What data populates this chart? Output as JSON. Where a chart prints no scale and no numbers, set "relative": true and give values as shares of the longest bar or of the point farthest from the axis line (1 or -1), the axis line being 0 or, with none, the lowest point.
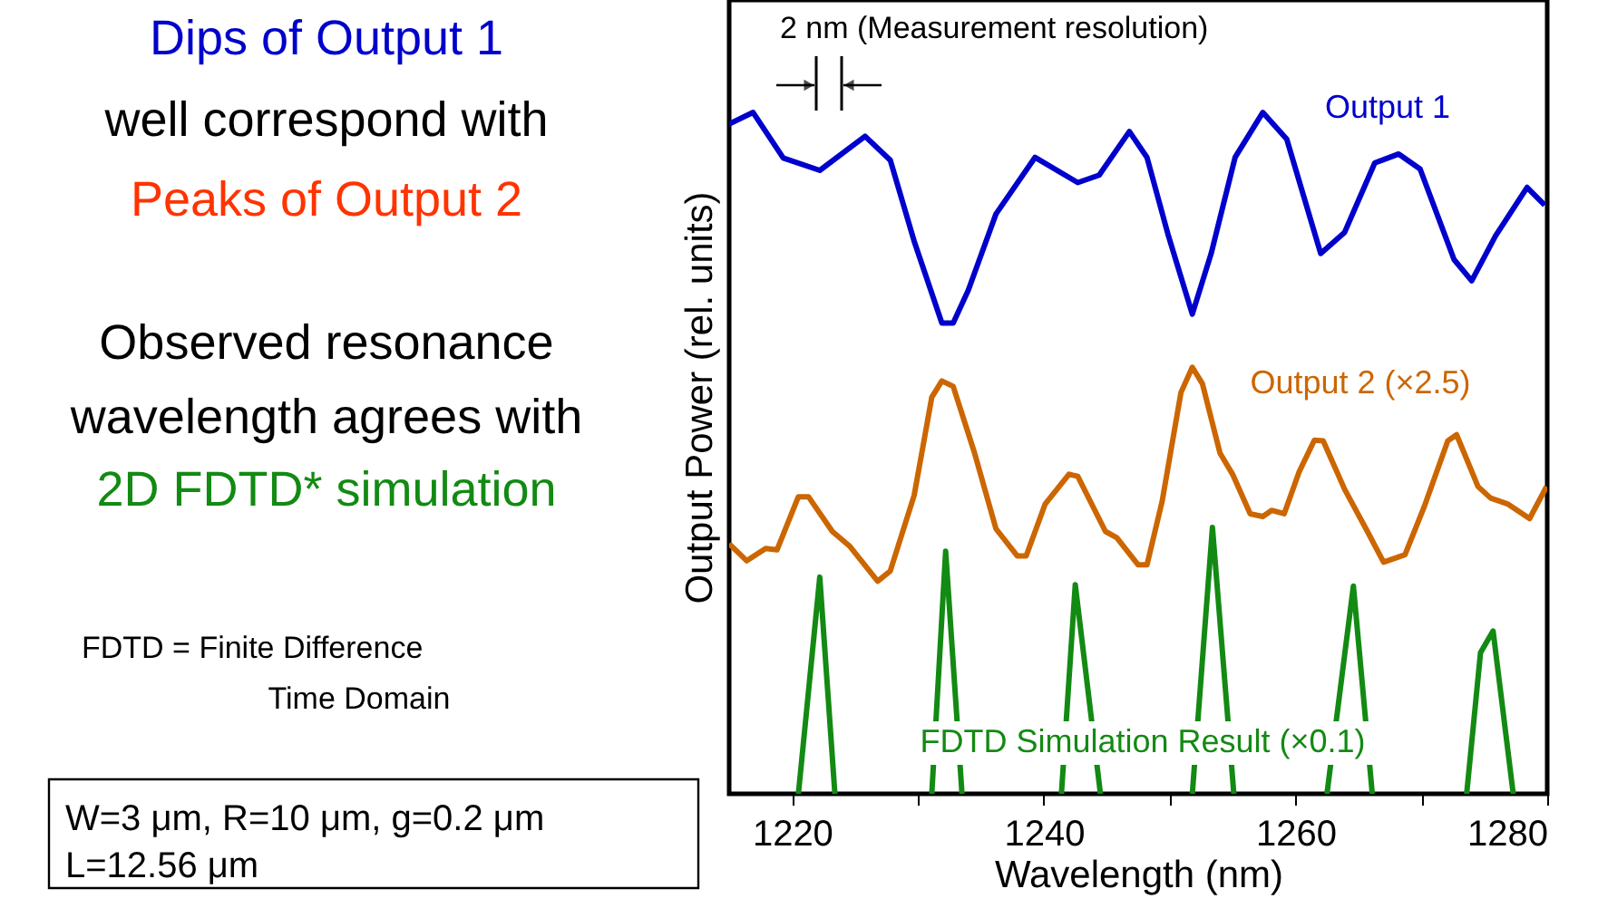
{
  "chart_data": {
    "type": "line",
    "relative": true,
    "xlabel": "Wavelength (nm)",
    "ylabel": "Output Power (rel. units)",
    "xlim": [
      1215,
      1280
    ],
    "xticks": [
      1220,
      {
        "value": 1230,
        "label": null
      },
      1240,
      {
        "value": 1250,
        "label": null
      },
      1260,
      {
        "value": 1270,
        "label": null
      },
      1280
    ],
    "series": [
      {
        "name": "Output 1",
        "color": "#0000cc",
        "x": [
          1215.0,
          1216.9,
          1219.3,
          1222.2,
          1225.8,
          1227.8,
          1229.7,
          1231.9,
          1232.8,
          1234.0,
          1236.2,
          1239.3,
          1242.7,
          1244.4,
          1246.8,
          1248.2,
          1249.9,
          1251.8,
          1253.3,
          1255.2,
          1257.4,
          1259.3,
          1262.0,
          1263.9,
          1266.3,
          1268.2,
          1269.9,
          1272.6,
          1274.0,
          1275.9,
          1278.4,
          1279.8
        ],
        "values": [
          0.983,
          1.0,
          0.933,
          0.915,
          0.965,
          0.93,
          0.811,
          0.691,
          0.691,
          0.739,
          0.851,
          0.934,
          0.897,
          0.908,
          0.972,
          0.934,
          0.819,
          0.704,
          0.793,
          0.934,
          1.0,
          0.961,
          0.793,
          0.824,
          0.926,
          0.939,
          0.917,
          0.784,
          0.753,
          0.819,
          0.89,
          0.864
        ]
      },
      {
        "name": "Output 2 (×2.5)",
        "color": "#cc6600",
        "x": [
          1215.0,
          1216.4,
          1217.9,
          1218.8,
          1220.5,
          1221.3,
          1223.2,
          1224.6,
          1226.8,
          1227.8,
          1229.7,
          1231.1,
          1231.9,
          1232.8,
          1234.5,
          1236.2,
          1237.9,
          1238.6,
          1240.1,
          1242.0,
          1242.7,
          1244.9,
          1245.8,
          1247.5,
          1248.2,
          1249.4,
          1250.9,
          1251.8,
          1252.6,
          1254.0,
          1255.0,
          1256.4,
          1257.4,
          1258.1,
          1259.1,
          1260.3,
          1261.5,
          1262.2,
          1263.9,
          1265.6,
          1267.0,
          1268.7,
          1270.2,
          1272.1,
          1272.8,
          1274.5,
          1275.5,
          1276.9,
          1278.6,
          1279.95
        ],
        "values": [
          0.367,
          0.342,
          0.36,
          0.358,
          0.436,
          0.436,
          0.385,
          0.363,
          0.312,
          0.327,
          0.438,
          0.582,
          0.606,
          0.598,
          0.5,
          0.389,
          0.349,
          0.349,
          0.425,
          0.469,
          0.466,
          0.385,
          0.376,
          0.336,
          0.336,
          0.429,
          0.589,
          0.626,
          0.602,
          0.5,
          0.469,
          0.411,
          0.407,
          0.416,
          0.411,
          0.473,
          0.519,
          0.518,
          0.447,
          0.389,
          0.34,
          0.351,
          0.42,
          0.518,
          0.527,
          0.451,
          0.434,
          0.425,
          0.404,
          0.451
        ]
      },
      {
        "name": "FDTD Simulation Result (×0.1)",
        "color": "#138a13",
        "x": [
          1220.5,
          1222.2,
          1223.4,
          1227.0,
          1231.1,
          1232.2,
          1233.5,
          1237.0,
          1241.4,
          1242.5,
          1244.5,
          1248.0,
          1251.8,
          1253.4,
          1255.1,
          1259.0,
          1262.5,
          1264.6,
          1266.1,
          1270.0,
          1273.6,
          1274.7,
          1275.7,
          1277.3
        ],
        "values": [
          0,
          0.318,
          0,
          null,
          0,
          0.356,
          0,
          null,
          0,
          0.307,
          0,
          null,
          0,
          0.391,
          0,
          null,
          0,
          0.305,
          0,
          null,
          0,
          0.207,
          0.239,
          0
        ]
      }
    ],
    "annotations": [
      "2 nm (Measurement resolution)",
      "Dips of Output 1",
      "well correspond with",
      "Peaks of Output 2",
      "Observed resonance",
      "wavelength agrees with",
      "2D FDTD* simulation",
      "FDTD = Finite Difference",
      "Time Domain",
      "W=3 μm, R=10 μm, g=0.2 μm",
      "L=12.56 μm"
    ]
  }
}
